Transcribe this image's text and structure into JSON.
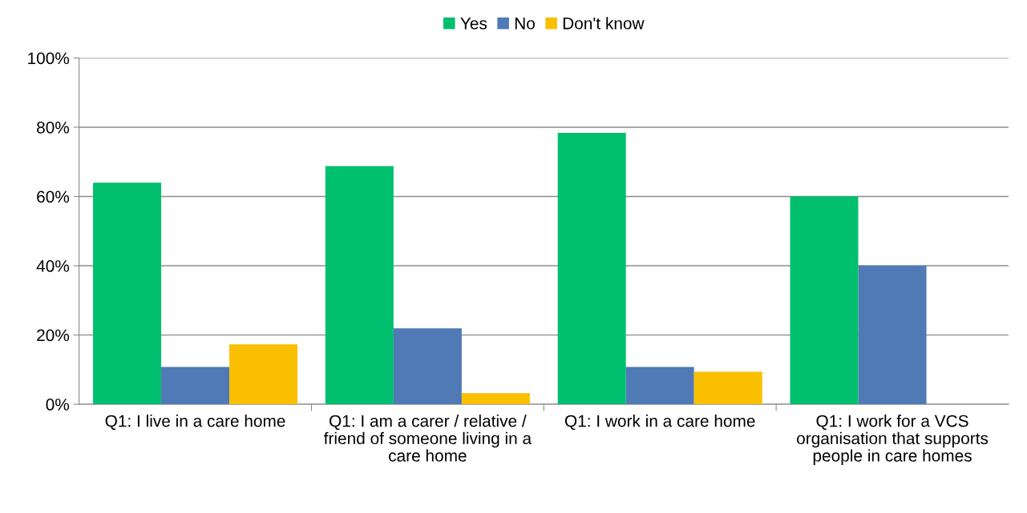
{
  "chart_data": {
    "type": "bar",
    "categories": [
      "Q1: I live in a care home",
      "Q1: I am a carer / relative / friend of someone living in a care home",
      "Q1: I work in a care home",
      "Q1: I work for a VCS organisation that supports people in care homes"
    ],
    "series": [
      {
        "name": "Yes",
        "color": "#00bf6f",
        "values": [
          64,
          68.8,
          78.4,
          60
        ]
      },
      {
        "name": "No",
        "color": "#4f7ab5",
        "values": [
          10.8,
          21.9,
          10.8,
          40
        ]
      },
      {
        "name": "Don't know",
        "color": "#f9bf00",
        "values": [
          17.3,
          3.2,
          9.4,
          null
        ]
      }
    ],
    "ylim": [
      0,
      100
    ],
    "yticks": [
      {
        "value": 0,
        "label": "0%"
      },
      {
        "value": 20,
        "label": "20%"
      },
      {
        "value": 40,
        "label": "40%"
      },
      {
        "value": 60,
        "label": "60%"
      },
      {
        "value": 80,
        "label": "80%"
      },
      {
        "value": 100,
        "label": "100%"
      }
    ],
    "grid": "y",
    "legend": "top"
  }
}
